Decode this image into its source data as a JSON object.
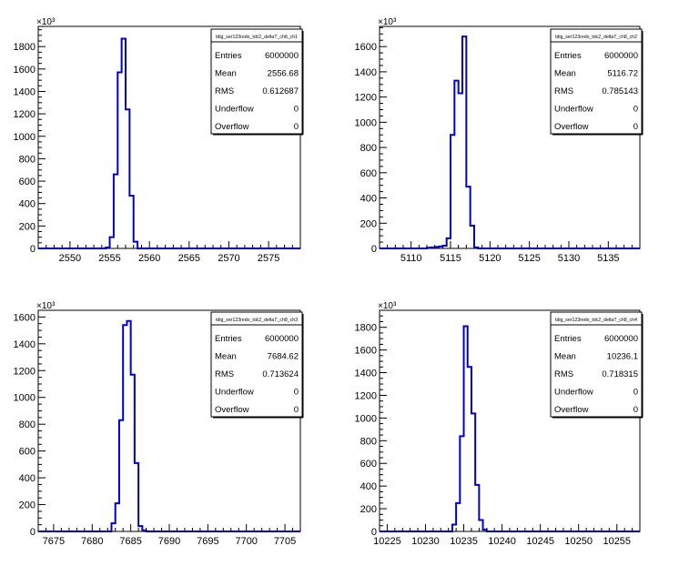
{
  "chart_data": [
    {
      "type": "histogram",
      "stats": {
        "title": "tdig_ser123redo_tdc2_deltaT_ch8_ch1",
        "rows": [
          {
            "label": "Entries",
            "value": "6000000"
          },
          {
            "label": "Mean",
            "value": "2556.68"
          },
          {
            "label": "RMS",
            "value": "0.612687"
          },
          {
            "label": "Underflow",
            "value": "0"
          },
          {
            "label": "Overflow",
            "value": "0"
          }
        ]
      },
      "y_multiplier": "×10³",
      "xlim": [
        2546,
        2579
      ],
      "ylim": [
        0,
        1980
      ],
      "xticks": [
        2550,
        2555,
        2560,
        2565,
        2570,
        2575
      ],
      "yticks": [
        0,
        200,
        400,
        600,
        800,
        1000,
        1200,
        1400,
        1600,
        1800
      ],
      "bin_width": 0.5,
      "bins": [
        [
          2554.5,
          8
        ],
        [
          2555.0,
          100
        ],
        [
          2555.5,
          660
        ],
        [
          2556.0,
          1570
        ],
        [
          2556.5,
          1870
        ],
        [
          2557.0,
          1240
        ],
        [
          2557.5,
          470
        ],
        [
          2558.0,
          60
        ]
      ]
    },
    {
      "type": "histogram",
      "stats": {
        "title": "tdig_ser123redo_tdc2_deltaT_ch8_ch2",
        "rows": [
          {
            "label": "Entries",
            "value": "6000000"
          },
          {
            "label": "Mean",
            "value": "5116.72"
          },
          {
            "label": "RMS",
            "value": "0.785143"
          },
          {
            "label": "Underflow",
            "value": "0"
          },
          {
            "label": "Overflow",
            "value": "0"
          }
        ]
      },
      "y_multiplier": "×10³",
      "xlim": [
        5106,
        5139
      ],
      "ylim": [
        0,
        1760
      ],
      "xticks": [
        5110,
        5115,
        5120,
        5125,
        5130,
        5135
      ],
      "yticks": [
        0,
        200,
        400,
        600,
        800,
        1000,
        1200,
        1400,
        1600
      ],
      "bin_width": 0.5,
      "bins": [
        [
          5112.0,
          5
        ],
        [
          5112.5,
          8
        ],
        [
          5113.0,
          12
        ],
        [
          5113.5,
          15
        ],
        [
          5114.0,
          22
        ],
        [
          5114.5,
          80
        ],
        [
          5115.0,
          900
        ],
        [
          5115.5,
          1330
        ],
        [
          5116.0,
          1230
        ],
        [
          5116.5,
          1680
        ],
        [
          5117.0,
          490
        ],
        [
          5117.5,
          180
        ],
        [
          5118.0,
          8
        ]
      ]
    },
    {
      "type": "histogram",
      "stats": {
        "title": "tdig_ser123redo_tdc2_deltaT_ch8_ch3",
        "rows": [
          {
            "label": "Entries",
            "value": "6000000"
          },
          {
            "label": "Mean",
            "value": "7684.62"
          },
          {
            "label": "RMS",
            "value": "0.713624"
          },
          {
            "label": "Underflow",
            "value": "0"
          },
          {
            "label": "Overflow",
            "value": "0"
          }
        ]
      },
      "y_multiplier": "×10³",
      "xlim": [
        7673,
        7707
      ],
      "ylim": [
        0,
        1650
      ],
      "xticks": [
        7675,
        7680,
        7685,
        7690,
        7695,
        7700,
        7705
      ],
      "yticks": [
        0,
        200,
        400,
        600,
        800,
        1000,
        1200,
        1400,
        1600
      ],
      "bin_width": 0.5,
      "bins": [
        [
          7682.5,
          60
        ],
        [
          7683.0,
          210
        ],
        [
          7683.5,
          830
        ],
        [
          7684.0,
          1540
        ],
        [
          7684.5,
          1570
        ],
        [
          7685.0,
          1170
        ],
        [
          7685.5,
          510
        ],
        [
          7686.0,
          40
        ],
        [
          7686.5,
          8
        ]
      ]
    },
    {
      "type": "histogram",
      "stats": {
        "title": "tdig_ser123redo_tdc2_deltaT_ch8_ch4",
        "rows": [
          {
            "label": "Entries",
            "value": "6000000"
          },
          {
            "label": "Mean",
            "value": "10236.1"
          },
          {
            "label": "RMS",
            "value": "0.718315"
          },
          {
            "label": "Underflow",
            "value": "0"
          },
          {
            "label": "Overflow",
            "value": "0"
          }
        ]
      },
      "y_multiplier": "×10³",
      "xlim": [
        10224,
        10258
      ],
      "ylim": [
        0,
        1950
      ],
      "xticks": [
        10225,
        10230,
        10235,
        10240,
        10245,
        10250,
        10255
      ],
      "yticks": [
        0,
        200,
        400,
        600,
        800,
        1000,
        1200,
        1400,
        1600,
        1800
      ],
      "bin_width": 0.5,
      "bins": [
        [
          10233.5,
          60
        ],
        [
          10234.0,
          250
        ],
        [
          10234.5,
          840
        ],
        [
          10235.0,
          1810
        ],
        [
          10235.5,
          1450
        ],
        [
          10236.0,
          1040
        ],
        [
          10236.5,
          410
        ],
        [
          10237.0,
          100
        ],
        [
          10237.5,
          15
        ]
      ]
    }
  ]
}
